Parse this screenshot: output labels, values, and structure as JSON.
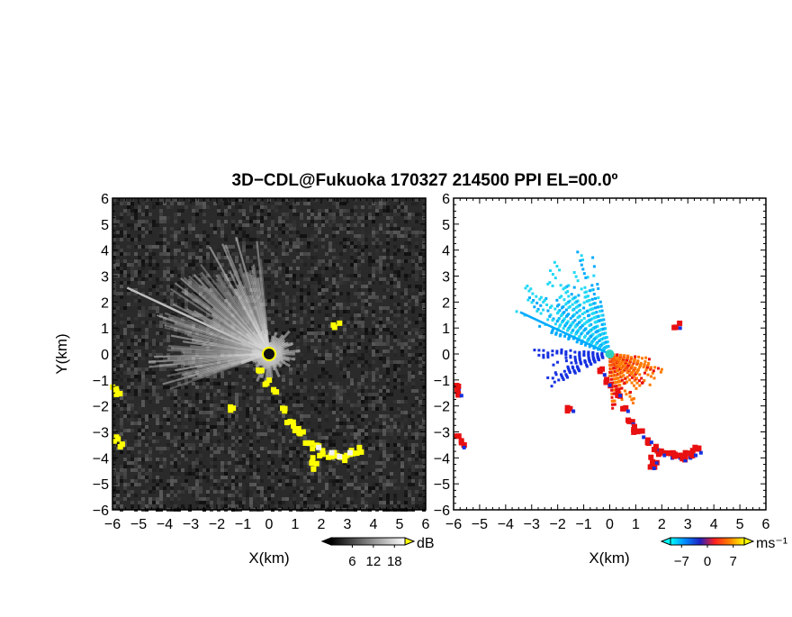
{
  "figure": {
    "title": "3D−CDL@Fukuoka 170327 214500 PPI EL=00.0º"
  },
  "chart_data": [
    {
      "type": "heatmap",
      "name": "intensity",
      "xlabel": "X(km)",
      "ylabel": "Y(km)",
      "xlim": [
        -6,
        6
      ],
      "ylim": [
        -6,
        6
      ],
      "x_ticks": [
        -6,
        -5,
        -4,
        -3,
        -2,
        -1,
        0,
        1,
        2,
        3,
        4,
        5,
        6
      ],
      "y_ticks": [
        -6,
        -5,
        -4,
        -3,
        -2,
        -1,
        0,
        1,
        2,
        3,
        4,
        5,
        6
      ],
      "x_tick_labels": [
        "−6",
        "−5",
        "−4",
        "−3",
        "−2",
        "−1",
        "0",
        "1",
        "2",
        "3",
        "4",
        "5",
        "6"
      ],
      "y_tick_labels": [
        "−6",
        "−5",
        "−4",
        "−3",
        "−2",
        "−1",
        "0",
        "1",
        "2",
        "3",
        "4",
        "5",
        "6"
      ],
      "colorbar": {
        "unit": "dB",
        "tick_values": [
          6,
          12,
          18
        ],
        "tick_labels": [
          "6",
          "12",
          "18"
        ],
        "range": [
          0,
          21
        ],
        "colors": [
          "#000000",
          "#ffffff"
        ],
        "overflow_color": "#ffff00"
      },
      "background_color": "#2a2a2a",
      "features": {
        "radar_center": [
          0,
          0
        ],
        "bright_sector_deg": [
          95,
          200
        ],
        "beam_line": {
          "from_deg": 155,
          "length_km": 6
        },
        "echo_yellow": [
          [
            -0.3,
            -0.7
          ],
          [
            -0.1,
            -1.1
          ],
          [
            0.3,
            -1.5
          ],
          [
            0.6,
            -2.1
          ],
          [
            0.8,
            -2.6
          ],
          [
            1.0,
            -2.9
          ],
          [
            1.2,
            -3.1
          ],
          [
            1.5,
            -3.3
          ],
          [
            1.8,
            -3.6
          ],
          [
            2.0,
            -3.8
          ],
          [
            2.3,
            -3.9
          ],
          [
            2.6,
            -3.9
          ],
          [
            2.8,
            -4.0
          ],
          [
            3.0,
            -3.9
          ],
          [
            3.2,
            -3.8
          ],
          [
            3.4,
            -3.7
          ],
          [
            1.7,
            -4.1
          ],
          [
            1.6,
            -4.3
          ],
          [
            -5.8,
            -3.3
          ],
          [
            -5.7,
            -3.5
          ],
          [
            -5.9,
            -1.3
          ],
          [
            -5.8,
            -1.5
          ],
          [
            -1.5,
            -2.1
          ],
          [
            2.6,
            1.1
          ]
        ]
      }
    },
    {
      "type": "heatmap",
      "name": "radial_velocity",
      "xlabel": "X(km)",
      "ylabel": "",
      "xlim": [
        -6,
        6
      ],
      "ylim": [
        -6,
        6
      ],
      "x_ticks": [
        -6,
        -5,
        -4,
        -3,
        -2,
        -1,
        0,
        1,
        2,
        3,
        4,
        5,
        6
      ],
      "x_tick_labels": [
        "−6",
        "−5",
        "−4",
        "−3",
        "−2",
        "−1",
        "0",
        "1",
        "2",
        "3",
        "4",
        "5",
        "6"
      ],
      "y_tick_labels": [
        "−6",
        "−5",
        "−4",
        "−3",
        "−2",
        "−1",
        "0",
        "1",
        "2",
        "3",
        "4",
        "5",
        "6"
      ],
      "colorbar": {
        "unit": "ms⁻¹",
        "tick_values": [
          -7,
          0,
          7
        ],
        "tick_labels": [
          "−7",
          "0",
          "7"
        ],
        "range": [
          -10,
          10
        ],
        "colors": [
          "#00ffff",
          "#0088ff",
          "#2020c0",
          "#ff2020",
          "#ff8000",
          "#ffff00"
        ]
      },
      "background_color": "#ffffff",
      "features": {
        "approach_sector_deg": [
          100,
          160
        ],
        "recede_sector_deg": [
          270,
          350
        ],
        "colors": {
          "light_cyan": "#22d8f5",
          "cyan": "#00aaff",
          "blue": "#1530e0",
          "red": "#e81010",
          "orange": "#ff7a00",
          "center": "#30d0c0"
        },
        "echo": [
          [
            -0.3,
            -0.7
          ],
          [
            -0.1,
            -1.1
          ],
          [
            0.3,
            -1.5
          ],
          [
            0.6,
            -2.1
          ],
          [
            0.8,
            -2.6
          ],
          [
            1.0,
            -2.9
          ],
          [
            1.2,
            -3.1
          ],
          [
            1.5,
            -3.3
          ],
          [
            1.8,
            -3.6
          ],
          [
            2.0,
            -3.8
          ],
          [
            2.3,
            -3.9
          ],
          [
            2.6,
            -3.9
          ],
          [
            2.8,
            -4.0
          ],
          [
            3.0,
            -3.9
          ],
          [
            3.2,
            -3.8
          ],
          [
            3.4,
            -3.7
          ],
          [
            1.7,
            -4.1
          ],
          [
            1.6,
            -4.3
          ],
          [
            -5.8,
            -3.3
          ],
          [
            -5.7,
            -3.5
          ],
          [
            -5.9,
            -1.3
          ],
          [
            -5.8,
            -1.5
          ],
          [
            -1.5,
            -2.1
          ],
          [
            2.6,
            1.1
          ]
        ]
      }
    }
  ]
}
